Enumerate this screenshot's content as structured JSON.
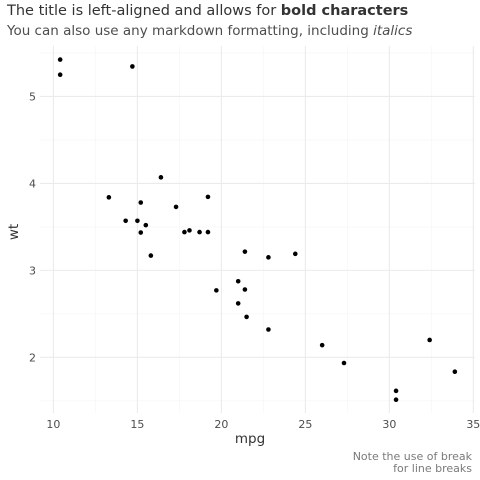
{
  "header": {
    "title_plain": "The title is left-aligned and allows for ",
    "title_bold": "bold characters",
    "subtitle_plain": "You can also use any markdown formatting, including ",
    "subtitle_italic": "italics"
  },
  "caption": {
    "line1": "Note the use of break",
    "line2": "for line breaks"
  },
  "chart_data": {
    "type": "scatter",
    "title": "The title is left-aligned and allows for bold characters",
    "subtitle": "You can also use any markdown formatting, including italics",
    "xlabel": "mpg",
    "ylabel": "wt",
    "xlim": [
      9.2,
      35.1
    ],
    "ylim": [
      1.36,
      5.58
    ],
    "x_ticks": [
      10,
      15,
      20,
      25,
      30,
      35
    ],
    "y_ticks": [
      2,
      3,
      4,
      5
    ],
    "grid": true,
    "point_color": "#000000",
    "grid_major_color": "#ebebeb",
    "grid_minor_color": "#f5f5f5",
    "points": [
      {
        "x": 21.0,
        "y": 2.62
      },
      {
        "x": 21.0,
        "y": 2.875
      },
      {
        "x": 22.8,
        "y": 2.32
      },
      {
        "x": 21.4,
        "y": 3.215
      },
      {
        "x": 18.7,
        "y": 3.44
      },
      {
        "x": 18.1,
        "y": 3.46
      },
      {
        "x": 14.3,
        "y": 3.57
      },
      {
        "x": 24.4,
        "y": 3.19
      },
      {
        "x": 22.8,
        "y": 3.15
      },
      {
        "x": 19.2,
        "y": 3.44
      },
      {
        "x": 17.8,
        "y": 3.44
      },
      {
        "x": 16.4,
        "y": 4.07
      },
      {
        "x": 17.3,
        "y": 3.73
      },
      {
        "x": 15.2,
        "y": 3.78
      },
      {
        "x": 10.4,
        "y": 5.25
      },
      {
        "x": 10.4,
        "y": 5.424
      },
      {
        "x": 14.7,
        "y": 5.345
      },
      {
        "x": 32.4,
        "y": 2.2
      },
      {
        "x": 30.4,
        "y": 1.615
      },
      {
        "x": 33.9,
        "y": 1.835
      },
      {
        "x": 21.5,
        "y": 2.465
      },
      {
        "x": 15.5,
        "y": 3.52
      },
      {
        "x": 15.2,
        "y": 3.435
      },
      {
        "x": 13.3,
        "y": 3.84
      },
      {
        "x": 19.2,
        "y": 3.845
      },
      {
        "x": 27.3,
        "y": 1.935
      },
      {
        "x": 26.0,
        "y": 2.14
      },
      {
        "x": 30.4,
        "y": 1.513
      },
      {
        "x": 15.8,
        "y": 3.17
      },
      {
        "x": 19.7,
        "y": 2.77
      },
      {
        "x": 15.0,
        "y": 3.57
      },
      {
        "x": 21.4,
        "y": 2.78
      }
    ]
  }
}
